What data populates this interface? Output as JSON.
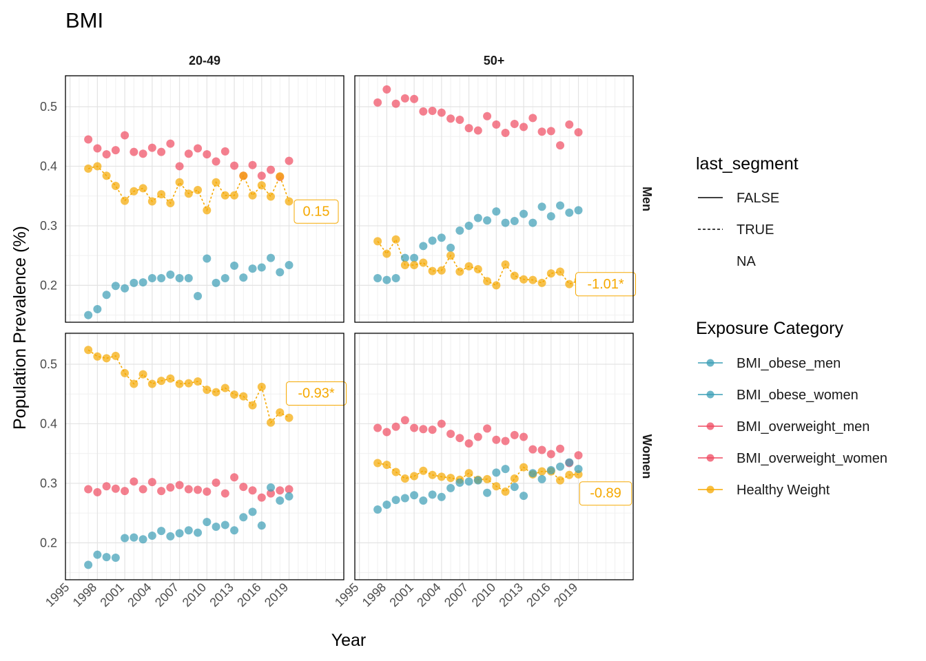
{
  "chart_data": {
    "type": "scatter",
    "title": "BMI",
    "xlabel": "Year",
    "ylabel": "Population Prevalence (%)",
    "xlim": [
      1994.5,
      2025
    ],
    "ylim": [
      0.138,
      0.552
    ],
    "x_ticks": [
      1995,
      1998,
      2001,
      2004,
      2007,
      2010,
      2013,
      2016,
      2019
    ],
    "y_ticks": [
      0.2,
      0.3,
      0.4,
      0.5
    ],
    "grid": true,
    "facet_cols": [
      "20-49",
      "50+"
    ],
    "facet_rows": [
      "Men",
      "Women"
    ],
    "legend_position": "right",
    "legends": [
      {
        "title": "last_segment",
        "items": [
          "FALSE",
          "TRUE",
          "NA"
        ]
      },
      {
        "title": "Exposure Category",
        "items": [
          "BMI_obese_men",
          "BMI_obese_women",
          "BMI_overweight_men",
          "BMI_overweight_women",
          "Healthy Weight"
        ]
      }
    ],
    "colors": {
      "BMI_obese_men": "#3a9db5",
      "BMI_obese_women": "#3a9db5",
      "BMI_overweight_men": "#ef4a60",
      "BMI_overweight_women": "#ef4a60",
      "Healthy Weight": "#f5a800"
    },
    "x": [
      1997,
      1998,
      1999,
      2000,
      2001,
      2002,
      2003,
      2004,
      2005,
      2006,
      2007,
      2008,
      2009,
      2010,
      2011,
      2012,
      2013,
      2014,
      2015,
      2016,
      2017,
      2018,
      2019
    ],
    "panels": [
      {
        "col": "20-49",
        "row": "Men",
        "annotation": "0.15",
        "annotation_y": 0.325,
        "series": [
          {
            "name": "BMI_overweight_men",
            "values": [
              0.445,
              0.43,
              0.42,
              0.427,
              0.452,
              0.424,
              0.421,
              0.431,
              0.424,
              0.438,
              0.4,
              0.421,
              0.43,
              0.42,
              0.408,
              0.425,
              0.401,
              0.384,
              0.402,
              0.384,
              0.394,
              0.382,
              0.409
            ]
          },
          {
            "name": "BMI_obese_men",
            "values": [
              0.15,
              0.16,
              0.184,
              0.199,
              0.195,
              0.204,
              0.205,
              0.212,
              0.212,
              0.218,
              0.212,
              0.212,
              0.182,
              0.245,
              0.204,
              0.212,
              0.233,
              0.213,
              0.228,
              0.23,
              0.246,
              0.222,
              0.234
            ]
          },
          {
            "name": "Healthy Weight",
            "values": [
              0.396,
              0.4,
              0.384,
              0.367,
              0.342,
              0.358,
              0.363,
              0.341,
              0.353,
              0.338,
              0.373,
              0.354,
              0.36,
              0.326,
              0.373,
              0.351,
              0.351,
              0.384,
              0.351,
              0.368,
              0.349,
              0.383,
              0.341
            ]
          }
        ]
      },
      {
        "col": "50+",
        "row": "Men",
        "annotation": "-1.01*",
        "annotation_y": 0.203,
        "series": [
          {
            "name": "BMI_overweight_men",
            "values": [
              0.507,
              0.529,
              0.505,
              0.514,
              0.513,
              0.492,
              0.493,
              0.49,
              0.48,
              0.478,
              0.464,
              0.46,
              0.484,
              0.47,
              0.456,
              0.471,
              0.466,
              0.481,
              0.458,
              0.459,
              0.435,
              0.47,
              0.457
            ]
          },
          {
            "name": "BMI_obese_men",
            "values": [
              0.212,
              0.209,
              0.212,
              0.246,
              0.246,
              0.266,
              0.275,
              0.28,
              0.263,
              0.292,
              0.3,
              0.313,
              0.309,
              0.324,
              0.305,
              0.308,
              0.32,
              0.305,
              0.332,
              0.316,
              0.334,
              0.322,
              0.326
            ]
          },
          {
            "name": "Healthy Weight",
            "values": [
              0.274,
              0.253,
              0.277,
              0.234,
              0.234,
              0.238,
              0.224,
              0.225,
              0.25,
              0.223,
              0.232,
              0.227,
              0.207,
              0.2,
              0.235,
              0.216,
              0.21,
              0.209,
              0.204,
              0.22,
              0.223,
              0.202,
              0.208
            ]
          }
        ]
      },
      {
        "col": "20-49",
        "row": "Women",
        "annotation": "-0.93*",
        "annotation_y": 0.452,
        "series": [
          {
            "name": "Healthy Weight",
            "values": [
              0.524,
              0.513,
              0.51,
              0.514,
              0.485,
              0.467,
              0.483,
              0.467,
              0.472,
              0.476,
              0.467,
              0.468,
              0.471,
              0.457,
              0.453,
              0.46,
              0.449,
              0.446,
              0.431,
              0.462,
              0.402,
              0.419,
              0.41
            ]
          },
          {
            "name": "BMI_overweight_women",
            "values": [
              0.29,
              0.285,
              0.295,
              0.291,
              0.287,
              0.303,
              0.29,
              0.302,
              0.287,
              0.293,
              0.297,
              0.29,
              0.289,
              0.286,
              0.301,
              0.283,
              0.31,
              0.294,
              0.288,
              0.276,
              0.283,
              0.288,
              0.29
            ]
          },
          {
            "name": "BMI_obese_women",
            "values": [
              0.163,
              0.18,
              0.176,
              0.175,
              0.208,
              0.209,
              0.206,
              0.212,
              0.22,
              0.211,
              0.216,
              0.221,
              0.217,
              0.235,
              0.227,
              0.23,
              0.221,
              0.243,
              0.252,
              0.229,
              0.293,
              0.271,
              0.278
            ]
          }
        ]
      },
      {
        "col": "50+",
        "row": "Women",
        "annotation": "-0.89",
        "annotation_y": 0.284,
        "series": [
          {
            "name": "BMI_overweight_women",
            "values": [
              0.393,
              0.386,
              0.395,
              0.406,
              0.393,
              0.391,
              0.39,
              0.4,
              0.383,
              0.376,
              0.367,
              0.378,
              0.392,
              0.373,
              0.371,
              0.381,
              0.378,
              0.357,
              0.356,
              0.349,
              0.358,
              0.334,
              0.347
            ]
          },
          {
            "name": "Healthy Weight",
            "values": [
              0.334,
              0.331,
              0.319,
              0.308,
              0.312,
              0.321,
              0.314,
              0.311,
              0.309,
              0.306,
              0.317,
              0.306,
              0.307,
              0.295,
              0.286,
              0.308,
              0.327,
              0.315,
              0.32,
              0.32,
              0.305,
              0.314,
              0.315
            ]
          },
          {
            "name": "BMI_obese_women",
            "values": [
              0.256,
              0.264,
              0.272,
              0.275,
              0.28,
              0.271,
              0.281,
              0.277,
              0.292,
              0.301,
              0.303,
              0.305,
              0.284,
              0.318,
              0.324,
              0.294,
              0.279,
              0.317,
              0.307,
              0.322,
              0.328,
              0.335,
              0.324
            ]
          }
        ]
      }
    ]
  }
}
